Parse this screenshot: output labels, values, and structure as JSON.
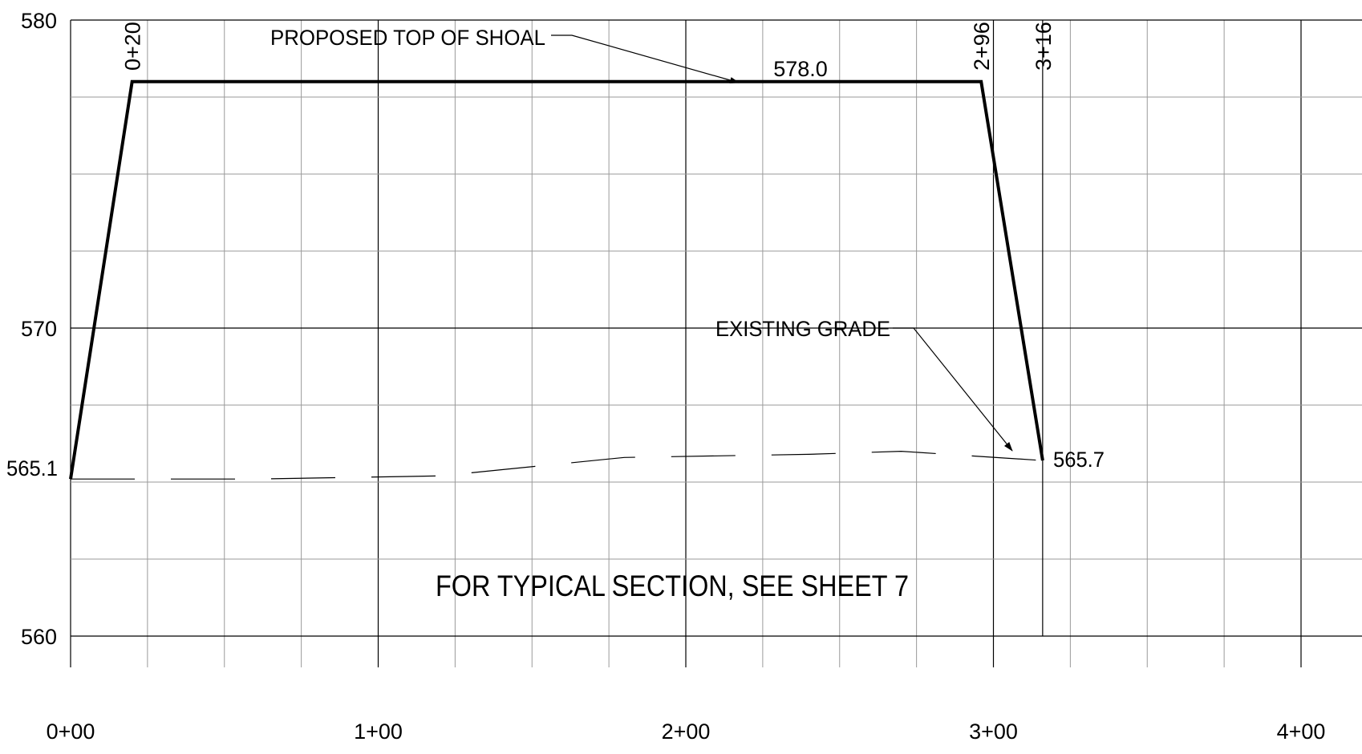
{
  "profile": {
    "stations": [
      {
        "value": 0,
        "label": "0+00"
      },
      {
        "value": 100,
        "label": "1+00"
      },
      {
        "value": 200,
        "label": "2+00"
      },
      {
        "value": 300,
        "label": "3+00"
      },
      {
        "value": 400,
        "label": "4+00"
      }
    ],
    "elevations": [
      {
        "value": 580,
        "label": "580"
      },
      {
        "value": 570,
        "label": "570"
      },
      {
        "value": 560,
        "label": "560"
      }
    ],
    "x_range": [
      0,
      420
    ],
    "y_range": [
      560,
      580
    ],
    "proposed_top": [
      {
        "sta": 0,
        "elev": 565.1
      },
      {
        "sta": 20,
        "elev": 578.0
      },
      {
        "sta": 296,
        "elev": 578.0
      },
      {
        "sta": 316,
        "elev": 565.7
      }
    ],
    "existing_grade": [
      {
        "sta": 0,
        "elev": 565.1
      },
      {
        "sta": 60,
        "elev": 565.1
      },
      {
        "sta": 120,
        "elev": 565.2
      },
      {
        "sta": 180,
        "elev": 565.8
      },
      {
        "sta": 240,
        "elev": 565.9
      },
      {
        "sta": 270,
        "elev": 566.0
      },
      {
        "sta": 316,
        "elev": 565.7
      }
    ],
    "station_callouts": [
      {
        "sta": 20,
        "label": "0+20"
      },
      {
        "sta": 296,
        "label": "2+96"
      },
      {
        "sta": 316,
        "label": "3+16"
      }
    ],
    "top_elevation_label": "578.0",
    "start_elevation_label": "565.1",
    "end_elevation_label": "565.7",
    "proposed_callout": "PROPOSED TOP OF SHOAL",
    "existing_callout": "EXISTING GRADE",
    "note": "FOR TYPICAL SECTION, SEE SHEET 7"
  }
}
